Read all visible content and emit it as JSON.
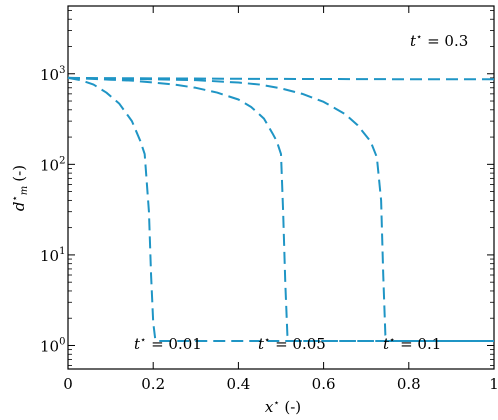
{
  "chart_data": {
    "type": "line",
    "xlabel": "x⋆ (-)",
    "ylabel": "d⋆m (-)",
    "ylabel_main": "d",
    "ylabel_sup": "⋆",
    "ylabel_sub": "m",
    "ylabel_unit": "(-)",
    "x_scale": "linear",
    "y_scale": "log",
    "xlim": [
      0,
      1
    ],
    "ylim": [
      0.55,
      5600
    ],
    "x_ticks": [
      {
        "value": 0,
        "label": "0"
      },
      {
        "value": 0.2,
        "label": "0.2"
      },
      {
        "value": 0.4,
        "label": "0.4"
      },
      {
        "value": 0.6,
        "label": "0.6"
      },
      {
        "value": 0.8,
        "label": "0.8"
      },
      {
        "value": 1,
        "label": "1"
      }
    ],
    "y_ticks": [
      {
        "value": 1,
        "base": "10",
        "exp": "0"
      },
      {
        "value": 10,
        "base": "10",
        "exp": "1"
      },
      {
        "value": 100,
        "base": "10",
        "exp": "2"
      },
      {
        "value": 1000,
        "base": "10",
        "exp": "3"
      }
    ],
    "grid": false,
    "line_color": "#1f95c5",
    "line_style": "dashed",
    "series": [
      {
        "t_value": 0.01,
        "x": [
          0,
          0.03,
          0.06,
          0.09,
          0.12,
          0.15,
          0.17,
          0.18,
          0.19,
          0.195,
          0.2,
          0.205,
          0.21,
          0.3,
          0.5,
          0.7,
          0.9,
          1.0
        ],
        "y": [
          900,
          850,
          760,
          620,
          470,
          300,
          180,
          130,
          30,
          6,
          1.8,
          1.15,
          1.12,
          1.12,
          1.12,
          1.12,
          1.12,
          1.12
        ]
      },
      {
        "t_value": 0.05,
        "x": [
          0,
          0.05,
          0.1,
          0.15,
          0.2,
          0.25,
          0.3,
          0.35,
          0.4,
          0.43,
          0.46,
          0.48,
          0.49,
          0.5,
          0.505,
          0.51,
          0.515,
          0.52,
          0.6,
          0.7,
          0.8,
          0.9,
          1.0
        ],
        "y": [
          900,
          880,
          860,
          840,
          800,
          760,
          700,
          620,
          520,
          430,
          320,
          220,
          180,
          130,
          30,
          5,
          1.3,
          1.12,
          1.12,
          1.12,
          1.12,
          1.12,
          1.12
        ]
      },
      {
        "t_value": 0.1,
        "x": [
          0,
          0.1,
          0.2,
          0.3,
          0.4,
          0.45,
          0.5,
          0.55,
          0.6,
          0.65,
          0.68,
          0.71,
          0.725,
          0.735,
          0.74,
          0.745,
          0.75,
          0.8,
          0.9,
          1.0
        ],
        "y": [
          900,
          885,
          870,
          850,
          800,
          760,
          690,
          600,
          490,
          360,
          270,
          180,
          120,
          40,
          6,
          1.3,
          1.12,
          1.12,
          1.12,
          1.12
        ]
      },
      {
        "t_value": 0.3,
        "x": [
          0,
          0.2,
          0.4,
          0.6,
          0.8,
          1.0
        ],
        "y": [
          900,
          890,
          880,
          875,
          870,
          870
        ]
      }
    ],
    "annotations": [
      {
        "prefix": "t",
        "sup": "⋆",
        "text": " = 0.3"
      },
      {
        "prefix": "t",
        "sup": "⋆",
        "text": " = 0.01"
      },
      {
        "prefix": "t",
        "sup": "⋆",
        "text": " = 0.05"
      },
      {
        "prefix": "t",
        "sup": "⋆",
        "text": " = 0.1"
      }
    ]
  }
}
